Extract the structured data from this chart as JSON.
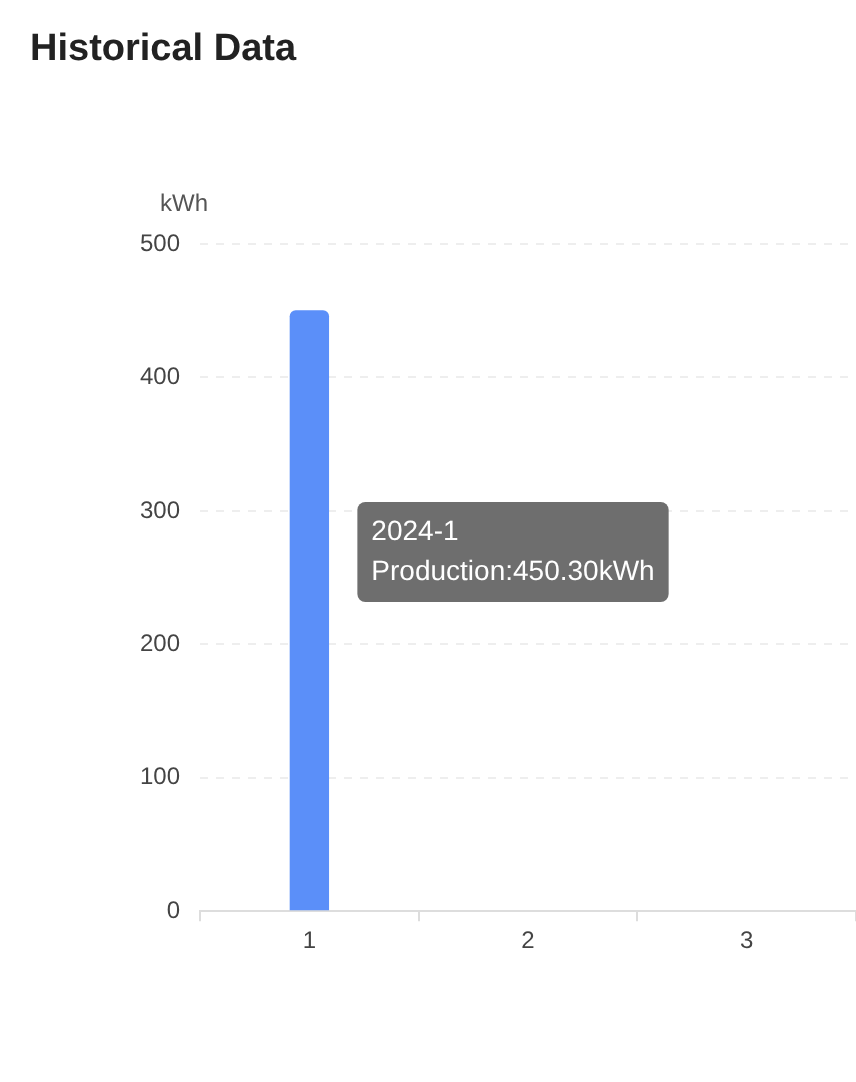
{
  "chart_data": {
    "type": "bar",
    "title": "Historical Data",
    "ylabel": "kWh",
    "categories": [
      "1",
      "2",
      "3"
    ],
    "values": [
      450.3,
      0,
      0
    ],
    "color": "#5b8ff9",
    "ylim": [
      0,
      500
    ],
    "yticks": [
      0,
      100,
      200,
      300,
      400,
      500
    ],
    "grid": "y",
    "legend": false,
    "annotations": [
      "2024-1",
      "Production:450.30kWh"
    ]
  }
}
